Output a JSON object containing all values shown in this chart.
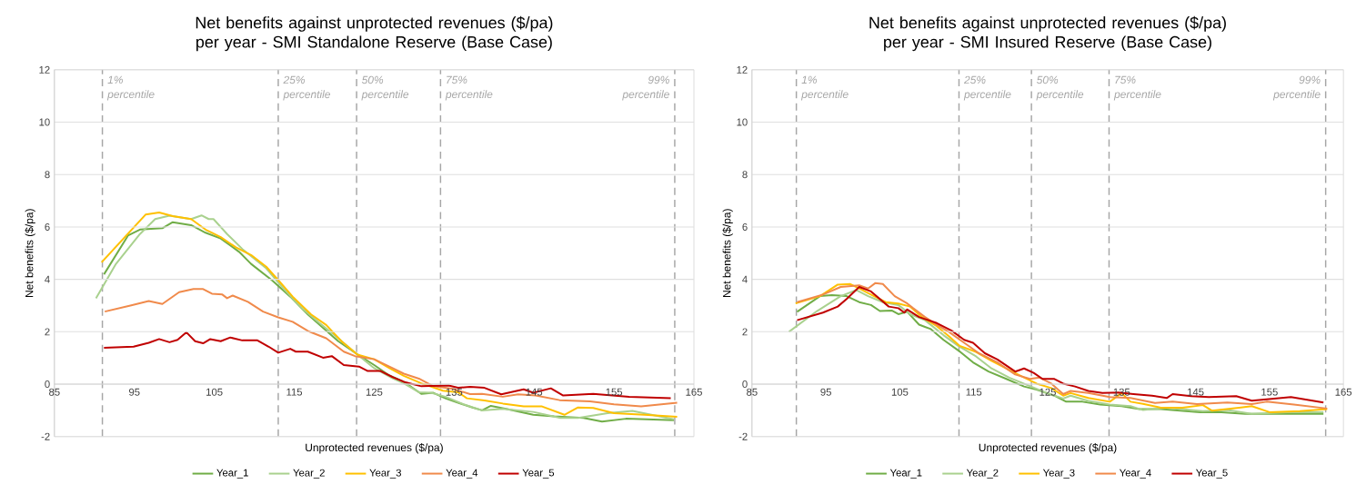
{
  "chart_data": [
    {
      "type": "line",
      "title": "Net benefits against unprotected revenues ($/pa) per year - SMI Standalone Reserve (Base Case)",
      "xlabel": "Unprotected revenues ($/pa)",
      "ylabel": "Net benefits ($/pa)",
      "xlim": [
        85,
        165
      ],
      "xticks": [
        85,
        95,
        105,
        115,
        125,
        135,
        145,
        155,
        165
      ],
      "ylim": [
        -2,
        12
      ],
      "yticks": [
        -2,
        0,
        2,
        4,
        6,
        8,
        10,
        12
      ],
      "grid": "y",
      "legend": "bottom",
      "marker": "none",
      "line_style": "solid",
      "ref_lines": [
        {
          "axis": "x",
          "value": 91,
          "label": "1% percentile",
          "color": "#a6a6a6",
          "line_style": "dashed"
        },
        {
          "axis": "x",
          "value": 113,
          "label": "25% percentile",
          "color": "#a6a6a6",
          "line_style": "dashed"
        },
        {
          "axis": "x",
          "value": 122.8,
          "label": "50% percentile",
          "color": "#a6a6a6",
          "line_style": "dashed"
        },
        {
          "axis": "x",
          "value": 133.3,
          "label": "75% percentile",
          "color": "#a6a6a6",
          "line_style": "dashed"
        },
        {
          "axis": "x",
          "value": 162.6,
          "label": "99% percentile",
          "color": "#a6a6a6",
          "line_style": "dashed"
        }
      ],
      "series": [
        {
          "name": "Year_1",
          "color": "#70ad47",
          "x": [
            91.2,
            94.2,
            95.7,
            98.5,
            99.8,
            102.1,
            103.9,
            105.8,
            108.1,
            109.6,
            112.2,
            114.5,
            116.7,
            118.6,
            120.5,
            122.7,
            125,
            126.9,
            128.7,
            129.8,
            130.9,
            132.4,
            133.9,
            135.5,
            137.3,
            138.5,
            139.6,
            141.5,
            144.9,
            147.5,
            151.2,
            153.5,
            156.5,
            162.5
          ],
          "values": [
            4.19,
            5.67,
            5.9,
            5.95,
            6.18,
            6.07,
            5.78,
            5.56,
            5.05,
            4.59,
            3.97,
            3.34,
            2.66,
            2.15,
            1.64,
            1.18,
            0.73,
            0.33,
            0.09,
            -0.14,
            -0.37,
            -0.33,
            -0.54,
            -0.71,
            -0.89,
            -1,
            -0.83,
            -0.94,
            -1.17,
            -1.23,
            -1.29,
            -1.43,
            -1.32,
            -1.38
          ]
        },
        {
          "name": "Year_2",
          "color": "#a9d18e",
          "x": [
            90.2,
            92.7,
            95.7,
            97.6,
            99.4,
            102.1,
            103.4,
            104.3,
            104.9,
            106.6,
            108.5,
            111.5,
            113.7,
            116,
            118.2,
            120.5,
            122.7,
            125,
            127.3,
            128.7,
            130.6,
            132.1,
            133.9,
            136.2,
            138.5,
            141.1,
            144.9,
            148.3,
            150.5,
            154.2,
            157.3,
            162.5
          ],
          "values": [
            3.28,
            4.59,
            5.73,
            6.3,
            6.43,
            6.3,
            6.44,
            6.3,
            6.3,
            5.73,
            5.16,
            4.42,
            3.63,
            2.89,
            2.32,
            1.75,
            1.18,
            0.61,
            0.22,
            0.03,
            -0.31,
            -0.33,
            -0.48,
            -0.77,
            -1,
            -0.94,
            -1.06,
            -1.29,
            -1.29,
            -1.11,
            -1.02,
            -1.34
          ]
        },
        {
          "name": "Year_3",
          "color": "#ffc000",
          "x": [
            90.9,
            96.4,
            98.1,
            99.8,
            102.1,
            103.9,
            105.8,
            107.7,
            109.6,
            111.5,
            113,
            114.8,
            117.1,
            119,
            120.9,
            122.9,
            125,
            126.9,
            128.7,
            130.9,
            133.6,
            135.5,
            136.6,
            138.8,
            141.1,
            143.7,
            146,
            148.8,
            150.5,
            152.4,
            155,
            158.8,
            162.9
          ],
          "values": [
            4.65,
            6.47,
            6.55,
            6.41,
            6.3,
            5.9,
            5.61,
            5.22,
            4.93,
            4.48,
            3.97,
            3.34,
            2.66,
            2.26,
            1.64,
            1.13,
            0.95,
            0.61,
            0.32,
            0.03,
            -0.25,
            -0.31,
            -0.54,
            -0.62,
            -0.74,
            -0.85,
            -0.85,
            -1.17,
            -0.89,
            -0.91,
            -1.11,
            -1.17,
            -1.25
          ]
        },
        {
          "name": "Year_4",
          "color": "#f08a4b",
          "x": [
            91.3,
            94.5,
            96.8,
            98.5,
            100.6,
            102.4,
            103.6,
            104.7,
            106,
            106.6,
            107.3,
            109.2,
            111.1,
            113,
            114.8,
            116.7,
            119,
            121.2,
            122.6,
            125,
            127.3,
            128.7,
            130.6,
            132.4,
            134.7,
            137,
            138.5,
            141.1,
            143,
            145.2,
            148.2,
            152,
            155,
            158.4,
            162.9
          ],
          "values": [
            2.77,
            3,
            3.17,
            3.06,
            3.51,
            3.63,
            3.63,
            3.45,
            3.42,
            3.28,
            3.38,
            3.14,
            2.77,
            2.55,
            2.38,
            2.03,
            1.75,
            1.24,
            1.07,
            0.95,
            0.61,
            0.4,
            0.21,
            -0.08,
            -0.17,
            -0.38,
            -0.37,
            -0.48,
            -0.39,
            -0.43,
            -0.61,
            -0.66,
            -0.77,
            -0.85,
            -0.71
          ]
        },
        {
          "name": "Year_5",
          "color": "#c00000",
          "x": [
            91.2,
            94.9,
            96.8,
            98.1,
            99.4,
            100.4,
            101.5,
            102.6,
            103.6,
            104.5,
            105.8,
            107,
            108.5,
            110.4,
            111.8,
            113,
            114.5,
            115.2,
            116.7,
            118.6,
            119.7,
            121.2,
            123.1,
            124.2,
            125.8,
            127.3,
            128.7,
            130.9,
            134.3,
            135.5,
            137,
            138.8,
            140.9,
            143.7,
            144.9,
            147.1,
            148.6,
            152.4,
            156.9,
            162.1
          ],
          "values": [
            1.39,
            1.43,
            1.58,
            1.72,
            1.6,
            1.69,
            1.98,
            1.64,
            1.56,
            1.72,
            1.64,
            1.78,
            1.67,
            1.67,
            1.43,
            1.2,
            1.35,
            1.24,
            1.24,
            1.01,
            1.07,
            0.73,
            0.67,
            0.5,
            0.5,
            0.27,
            0.09,
            -0.08,
            -0.05,
            -0.14,
            -0.1,
            -0.14,
            -0.39,
            -0.2,
            -0.33,
            -0.16,
            -0.43,
            -0.37,
            -0.48,
            -0.54
          ]
        }
      ]
    },
    {
      "type": "line",
      "title": "Net benefits against unprotected revenues ($/pa) per year - SMI Insured Reserve (Base Case)",
      "xlabel": "Unprotected revenues ($/pa)",
      "ylabel": "Net benefits ($/pa)",
      "xlim": [
        85,
        165
      ],
      "xticks": [
        85,
        95,
        105,
        115,
        125,
        135,
        145,
        155,
        165
      ],
      "ylim": [
        -2,
        12
      ],
      "yticks": [
        -2,
        0,
        2,
        4,
        6,
        8,
        10,
        12
      ],
      "grid": "y",
      "legend": "bottom",
      "marker": "none",
      "line_style": "solid",
      "ref_lines": [
        {
          "axis": "x",
          "value": 91,
          "label": "1% percentile",
          "color": "#a6a6a6",
          "line_style": "dashed"
        },
        {
          "axis": "x",
          "value": 113,
          "label": "25% percentile",
          "color": "#a6a6a6",
          "line_style": "dashed"
        },
        {
          "axis": "x",
          "value": 122.8,
          "label": "50% percentile",
          "color": "#a6a6a6",
          "line_style": "dashed"
        },
        {
          "axis": "x",
          "value": 133.3,
          "label": "75% percentile",
          "color": "#a6a6a6",
          "line_style": "dashed"
        },
        {
          "axis": "x",
          "value": 162.6,
          "label": "99% percentile",
          "color": "#a6a6a6",
          "line_style": "dashed"
        }
      ],
      "series": [
        {
          "name": "Year_1",
          "color": "#70ad47",
          "x": [
            91.1,
            94.2,
            95.8,
            97.8,
            99.5,
            101.1,
            102.3,
            103.9,
            104.8,
            106,
            107.6,
            109.2,
            110.9,
            112.9,
            114.9,
            117,
            119.4,
            121.8,
            123.5,
            125.9,
            127.5,
            129.7,
            132.1,
            135,
            137.4,
            140.3,
            145.6,
            148.5,
            151.7,
            156.6,
            162.3
          ],
          "values": [
            2.76,
            3.36,
            3.4,
            3.36,
            3.13,
            3.02,
            2.79,
            2.81,
            2.67,
            2.76,
            2.27,
            2.1,
            1.69,
            1.29,
            0.83,
            0.48,
            0.2,
            -0.09,
            -0.21,
            -0.44,
            -0.67,
            -0.67,
            -0.78,
            -0.84,
            -0.95,
            -0.95,
            -1.07,
            -1.07,
            -1.13,
            -1.13,
            -1.13
          ]
        },
        {
          "name": "Year_2",
          "color": "#a9d18e",
          "x": [
            90,
            93.8,
            97,
            99.1,
            100.7,
            102.7,
            104.8,
            106.4,
            108.4,
            110.9,
            112.9,
            115.3,
            117.4,
            119.8,
            122.2,
            124.7,
            127.1,
            128.1,
            130.5,
            133.4,
            136.2,
            137.9,
            141.1,
            146,
            149.3,
            152.6,
            157.4,
            162.3
          ],
          "values": [
            2,
            2.79,
            3.36,
            3.59,
            3.36,
            3.13,
            3.02,
            2.67,
            2.44,
            1.87,
            1.46,
            1.06,
            0.6,
            0.25,
            -0.03,
            -0.32,
            -0.55,
            -0.44,
            -0.64,
            -0.78,
            -0.84,
            -0.99,
            -0.9,
            -1.03,
            -0.99,
            -1.13,
            -1.07,
            -1.07
          ]
        },
        {
          "name": "Year_3",
          "color": "#ffc000",
          "x": [
            90.9,
            94.2,
            96.6,
            98.3,
            99.5,
            101.5,
            103.1,
            104.8,
            106.4,
            108,
            110,
            111.7,
            113.1,
            115.3,
            117.4,
            119.4,
            121.4,
            123.5,
            125.5,
            127.1,
            128.1,
            130.5,
            133.4,
            135,
            136.2,
            137.9,
            140.3,
            143.2,
            146,
            147.2,
            150.9,
            152.6,
            155,
            159.1,
            162.8
          ],
          "values": [
            3.08,
            3.36,
            3.8,
            3.82,
            3.65,
            3.36,
            3.13,
            3.08,
            2.96,
            2.56,
            2.21,
            1.81,
            1.46,
            1.23,
            0.89,
            0.6,
            0.31,
            0.02,
            -0.15,
            -0.44,
            -0.34,
            -0.53,
            -0.67,
            -0.34,
            -0.67,
            -0.75,
            -0.9,
            -0.9,
            -0.8,
            -1.01,
            -0.9,
            -0.84,
            -1.07,
            -1.03,
            -0.95
          ]
        },
        {
          "name": "Year_4",
          "color": "#f08a4b",
          "x": [
            91.1,
            94.6,
            97,
            99.5,
            100.7,
            101.7,
            102.7,
            104.3,
            106,
            106.8,
            108.4,
            110,
            111.7,
            113.7,
            115.7,
            118.2,
            120.6,
            122.6,
            123.9,
            125.5,
            127.1,
            128.1,
            130.5,
            133.4,
            136.2,
            139.5,
            141.9,
            145.2,
            149.3,
            152.6,
            154.6,
            158.3,
            162.8
          ],
          "values": [
            3.13,
            3.42,
            3.71,
            3.77,
            3.65,
            3.86,
            3.82,
            3.36,
            3.08,
            2.9,
            2.56,
            2.27,
            1.98,
            1.58,
            1.18,
            0.83,
            0.37,
            0.2,
            0.25,
            0.02,
            -0.38,
            -0.26,
            -0.34,
            -0.49,
            -0.53,
            -0.72,
            -0.67,
            -0.76,
            -0.7,
            -0.76,
            -0.67,
            -0.78,
            -0.93
          ]
        },
        {
          "name": "Year_5",
          "color": "#c00000",
          "x": [
            91.1,
            94.6,
            96.6,
            97.8,
            99.5,
            101.1,
            102.3,
            103.5,
            104.8,
            105.6,
            106,
            107.6,
            110,
            112,
            113.7,
            114.9,
            116.5,
            118.2,
            119.4,
            120.6,
            121.8,
            123.1,
            124.3,
            125.9,
            127.1,
            128.7,
            130.5,
            132.4,
            134.6,
            136.6,
            139.1,
            141.1,
            141.9,
            144.4,
            146.8,
            150.5,
            152.6,
            156.6,
            157.9,
            162.3
          ],
          "values": [
            2.44,
            2.73,
            2.96,
            3.25,
            3.71,
            3.54,
            3.25,
            2.96,
            2.9,
            2.73,
            2.85,
            2.56,
            2.33,
            2.04,
            1.69,
            1.58,
            1.18,
            0.94,
            0.71,
            0.48,
            0.6,
            0.43,
            0.2,
            0.2,
            0.02,
            -0.09,
            -0.26,
            -0.34,
            -0.32,
            -0.38,
            -0.44,
            -0.53,
            -0.38,
            -0.46,
            -0.49,
            -0.46,
            -0.63,
            -0.53,
            -0.49,
            -0.7
          ]
        }
      ]
    }
  ]
}
